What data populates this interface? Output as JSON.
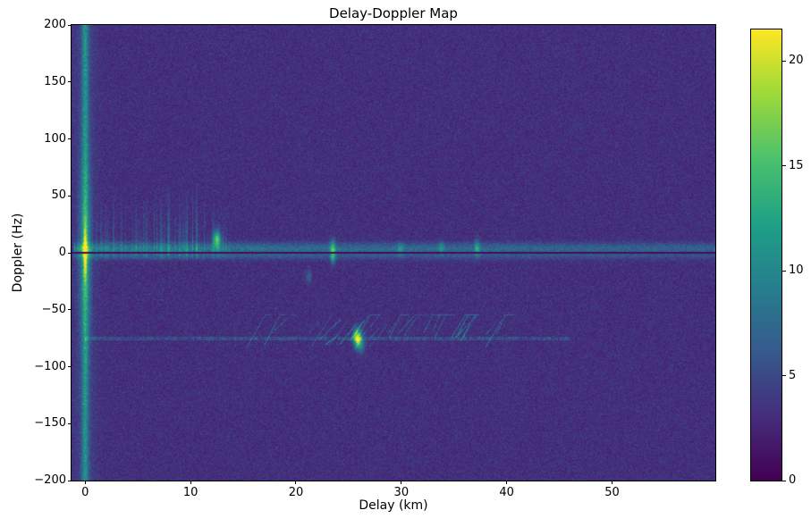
{
  "chart_data": {
    "type": "heatmap",
    "title": "Delay-Doppler Map",
    "xlabel": "Delay (km)",
    "ylabel": "Doppler (Hz)",
    "x_range": [
      -1.3,
      59.8
    ],
    "y_range": [
      -200,
      200
    ],
    "x_ticks": {
      "values": [
        0,
        10,
        20,
        30,
        40,
        50
      ],
      "labels": [
        "0",
        "10",
        "20",
        "30",
        "40",
        "50"
      ]
    },
    "y_ticks": {
      "values": [
        200,
        150,
        100,
        50,
        0,
        -50,
        -100,
        -150,
        -200
      ],
      "labels": [
        "200",
        "150",
        "100",
        "50",
        "0",
        "−50",
        "−100",
        "−150",
        "−200"
      ]
    },
    "colormap": "viridis",
    "colorbar": {
      "min": 0,
      "max": 21.5,
      "ticks": {
        "values": [
          0,
          5,
          10,
          15,
          20
        ],
        "labels": [
          "0",
          "5",
          "10",
          "15",
          "20"
        ]
      }
    },
    "noise_floor": {
      "mean": 3.2,
      "spread": 2.4
    },
    "features": {
      "direct_path": {
        "delay_km": 0,
        "peak": 22,
        "doppler_extent_hz": [
          -200,
          200
        ]
      },
      "zero_doppler_clutter_band": {
        "doppler_hz": [
          -8,
          12
        ],
        "delay_extent": "full width"
      },
      "dark_zero_doppler_line_hz": 0,
      "stationary_clutter_streaks": {
        "delay_km": [
          0.5,
          13.8
        ],
        "doppler_hz": [
          -8,
          65
        ]
      },
      "interference_line": {
        "doppler_hz": -75,
        "delay_km": [
          0,
          46
        ]
      },
      "diagonal_streaks": {
        "delay_km": [
          15,
          40
        ],
        "doppler_hz": [
          -85,
          -55
        ],
        "count": 34
      },
      "target_echo": {
        "delay_km": 25.8,
        "doppler_hz": -74,
        "amplitude": 15
      },
      "hotspots": [
        [
          12.5,
          12,
          12,
          0.25,
          5
        ],
        [
          23.5,
          3,
          8,
          0.18,
          6
        ],
        [
          23.5,
          -5,
          5,
          0.15,
          4
        ],
        [
          29.9,
          3,
          4.5,
          0.2,
          4
        ],
        [
          33.8,
          4,
          4,
          0.2,
          4
        ],
        [
          37.2,
          4,
          6.5,
          0.18,
          5
        ],
        [
          21.2,
          -21,
          3.5,
          0.2,
          4
        ],
        [
          25.8,
          -74,
          15,
          0.25,
          5
        ],
        [
          26.1,
          -80,
          7,
          0.3,
          5
        ]
      ]
    }
  }
}
